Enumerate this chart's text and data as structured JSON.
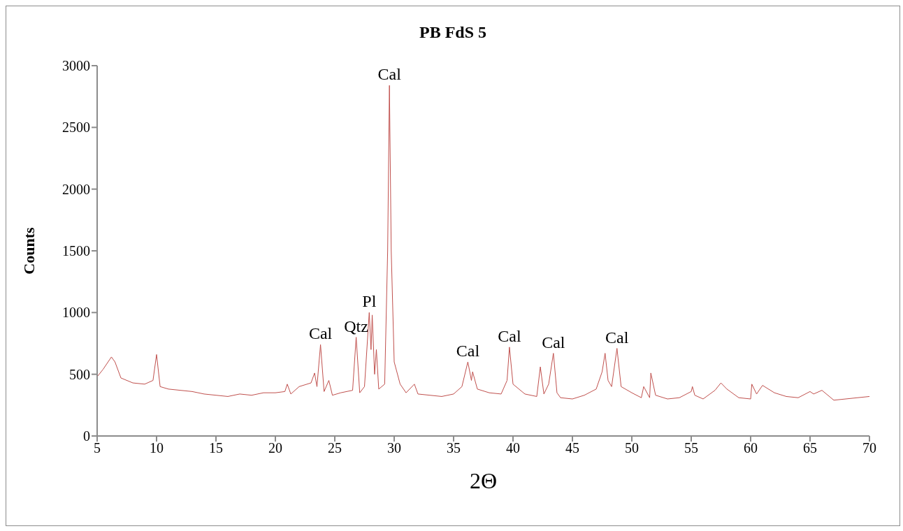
{
  "chart_data": {
    "type": "line",
    "title": "PB FdS 5",
    "xlabel": "2Θ",
    "ylabel": "Counts",
    "xlim": [
      5,
      70
    ],
    "xticks": [
      5,
      10,
      15,
      20,
      25,
      30,
      35,
      40,
      45,
      50,
      55,
      60,
      65,
      70
    ],
    "ylim": [
      0,
      3000
    ],
    "yticks": [
      0,
      500,
      1000,
      1500,
      2000,
      2500,
      3000
    ],
    "grid": false,
    "legend": false,
    "marker": "none",
    "line_style": "solid",
    "x": [
      5,
      5.5,
      6.2,
      6.5,
      7,
      8,
      9,
      9.7,
      10,
      10.3,
      11,
      12,
      13,
      14,
      15,
      16,
      17,
      18,
      19,
      20,
      20.8,
      21,
      21.3,
      22,
      23,
      23.3,
      23.5,
      23.8,
      24.1,
      24.5,
      24.8,
      25.5,
      26.5,
      26.8,
      27.1,
      27.5,
      27.9,
      28.05,
      28.15,
      28.35,
      28.5,
      28.7,
      29.2,
      29.45,
      29.6,
      29.75,
      30,
      30.5,
      31,
      31.7,
      32,
      33,
      34,
      35,
      35.7,
      36.2,
      36.5,
      36.6,
      37,
      38,
      39,
      39.5,
      39.7,
      40,
      41,
      42,
      42.3,
      42.6,
      43,
      43.4,
      43.7,
      44,
      45,
      46,
      47,
      47.5,
      47.75,
      48,
      48.3,
      48.75,
      49.1,
      50,
      50.8,
      51,
      51.5,
      51.6,
      52,
      53,
      54,
      55,
      55.1,
      55.3,
      56,
      57,
      57.5,
      58,
      59,
      60,
      60.1,
      60.5,
      61,
      62,
      63,
      64,
      65,
      65.3,
      66,
      67,
      68,
      69,
      70
    ],
    "series": [
      {
        "color": "#c0504d",
        "values": [
          480,
          540,
          640,
          600,
          470,
          430,
          420,
          450,
          660,
          400,
          380,
          370,
          360,
          340,
          330,
          320,
          340,
          330,
          350,
          350,
          360,
          420,
          340,
          400,
          430,
          510,
          400,
          740,
          360,
          450,
          330,
          350,
          370,
          800,
          350,
          400,
          1000,
          700,
          980,
          500,
          700,
          380,
          420,
          1500,
          2840,
          1500,
          600,
          420,
          350,
          420,
          340,
          330,
          320,
          340,
          400,
          600,
          450,
          520,
          380,
          350,
          340,
          450,
          720,
          420,
          340,
          320,
          560,
          340,
          420,
          670,
          350,
          310,
          300,
          330,
          380,
          520,
          670,
          450,
          400,
          710,
          400,
          350,
          310,
          400,
          310,
          510,
          330,
          300,
          310,
          360,
          400,
          330,
          300,
          370,
          430,
          380,
          310,
          300,
          420,
          340,
          410,
          350,
          320,
          310,
          360,
          340,
          370,
          290,
          300,
          310,
          320
        ]
      }
    ],
    "annotations": [
      {
        "text": "Cal",
        "x": 23.8,
        "y": 740
      },
      {
        "text": "Qtz",
        "x": 26.8,
        "y": 800
      },
      {
        "text": "Pl",
        "x": 27.9,
        "y": 1000
      },
      {
        "text": "Cal",
        "x": 29.6,
        "y": 2840
      },
      {
        "text": "Cal",
        "x": 36.2,
        "y": 600
      },
      {
        "text": "Cal",
        "x": 39.7,
        "y": 720
      },
      {
        "text": "Cal",
        "x": 43.4,
        "y": 670
      },
      {
        "text": "Cal",
        "x": 48.75,
        "y": 710
      }
    ]
  }
}
